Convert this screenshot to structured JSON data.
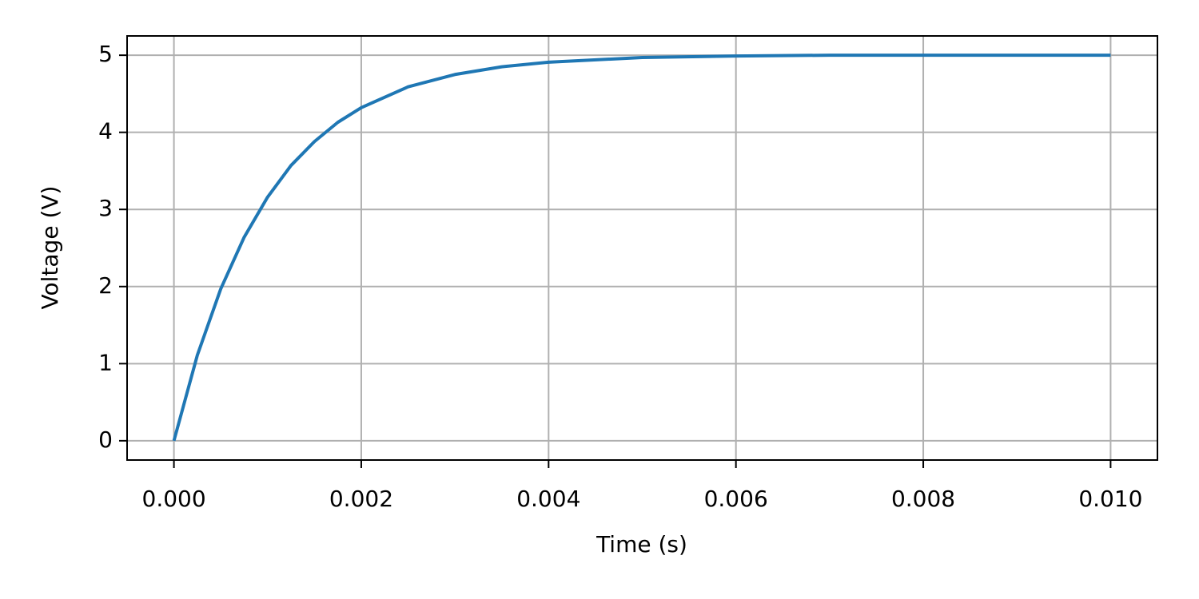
{
  "chart_data": {
    "type": "line",
    "x_label": "Time (s)",
    "y_label": "Voltage (V)",
    "x": [
      0,
      0.00025,
      0.0005,
      0.00075,
      0.001,
      0.00125,
      0.0015,
      0.00175,
      0.002,
      0.0025,
      0.003,
      0.0035,
      0.004,
      0.005,
      0.006,
      0.007,
      0.008,
      0.01
    ],
    "series": [
      {
        "color": "#1f77b4",
        "values": [
          0,
          1.11,
          1.97,
          2.64,
          3.16,
          3.57,
          3.88,
          4.13,
          4.32,
          4.59,
          4.75,
          4.85,
          4.91,
          4.97,
          4.99,
          5.0,
          5.0,
          5.0
        ]
      }
    ],
    "xlim": [
      -0.0005,
      0.0105
    ],
    "ylim": [
      -0.25,
      5.25
    ],
    "xticks": [
      {
        "value": 0,
        "label": "0.000"
      },
      {
        "value": 0.002,
        "label": "0.002"
      },
      {
        "value": 0.004,
        "label": "0.004"
      },
      {
        "value": 0.006,
        "label": "0.006"
      },
      {
        "value": 0.008,
        "label": "0.008"
      },
      {
        "value": 0.01,
        "label": "0.010"
      }
    ],
    "yticks": [
      0,
      1,
      2,
      3,
      4,
      5
    ],
    "grid": true
  }
}
